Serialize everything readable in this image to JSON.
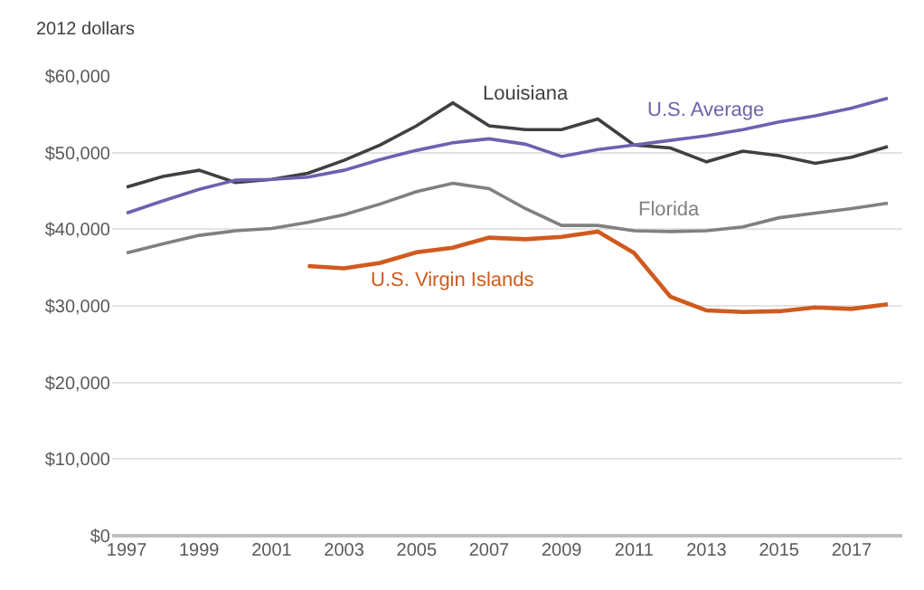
{
  "chart_data": {
    "type": "line",
    "ylabel": "2012 dollars",
    "x": [
      1997,
      1998,
      1999,
      2000,
      2001,
      2002,
      2003,
      2004,
      2005,
      2006,
      2007,
      2008,
      2009,
      2010,
      2011,
      2012,
      2013,
      2014,
      2015,
      2016,
      2017,
      2018
    ],
    "series": [
      {
        "name": "Louisiana",
        "color": "#404040",
        "values": [
          45500,
          46900,
          47700,
          46100,
          46500,
          47300,
          49000,
          51000,
          53500,
          56500,
          53500,
          53000,
          53000,
          54400,
          51000,
          50600,
          48800,
          50200,
          49600,
          48600,
          49400,
          50800
        ]
      },
      {
        "name": "U.S. Average",
        "color": "#7060b0",
        "values": [
          42100,
          43700,
          45200,
          46400,
          46500,
          46800,
          47700,
          49100,
          50300,
          51300,
          51800,
          51100,
          49500,
          50400,
          51000,
          51600,
          52200,
          53000,
          54000,
          54800,
          55800,
          57100
        ]
      },
      {
        "name": "Florida",
        "color": "#808080",
        "values": [
          36900,
          38100,
          39200,
          39800,
          40100,
          40900,
          41900,
          43300,
          44900,
          46000,
          45300,
          42700,
          40500,
          40500,
          39800,
          39700,
          39800,
          40300,
          41500,
          42100,
          42700,
          43400
        ]
      },
      {
        "name": "U.S. Virgin Islands",
        "color": "#d05a1e",
        "values": [
          null,
          null,
          null,
          null,
          null,
          35200,
          34900,
          35600,
          37000,
          37600,
          38900,
          38700,
          39000,
          39700,
          36900,
          31200,
          29400,
          29200,
          29300,
          29800,
          29600,
          30200
        ]
      }
    ],
    "xlim": [
      1996.6,
      2018.4
    ],
    "xticks": [
      1997,
      1999,
      2001,
      2003,
      2005,
      2007,
      2009,
      2011,
      2013,
      2015,
      2017
    ],
    "ylim": [
      0,
      60000
    ],
    "yticks": [
      {
        "value": 0,
        "label": "$0"
      },
      {
        "value": 10000,
        "label": "$10,000"
      },
      {
        "value": 20000,
        "label": "$20,000"
      },
      {
        "value": 30000,
        "label": "$30,000"
      },
      {
        "value": 40000,
        "label": "$40,000"
      },
      {
        "value": 50000,
        "label": "$50,000"
      },
      {
        "value": 60000,
        "label": "$60,000"
      }
    ],
    "grid": "y",
    "legend": false,
    "marker": "none",
    "line_style": "solid"
  }
}
